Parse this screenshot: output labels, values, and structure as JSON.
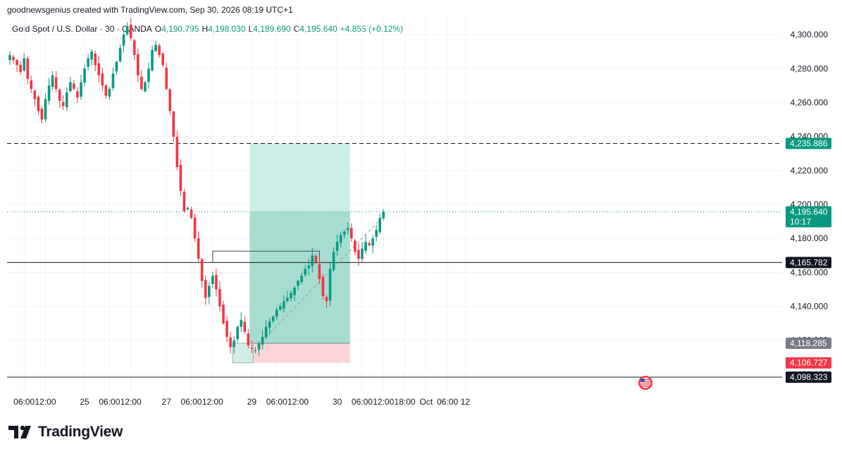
{
  "credit": "goodnewsgenius created with TradingView.com, Sep 30, 2026 08:19 UTC+1",
  "legend": {
    "symbol": "Gold Spot / U.S. Dollar · 30 · OANDA",
    "o_label": "O",
    "o_value": "4,190.795",
    "h_label": "H",
    "h_value": "4,198.030",
    "l_label": "L",
    "l_value": "4,189.690",
    "c_label": "C",
    "c_value": "4,195.640",
    "change": "+4.855 (+0.12%)"
  },
  "colors": {
    "up": "#089981",
    "down": "#f23645",
    "target_zone": "#cdeee6",
    "profit_zone": "#a6ddd0",
    "stop_zone": "#fbd5d8",
    "price_tag": "#089981",
    "level_tag": "#131722",
    "entry_tag": "#787b86",
    "stop_tag": "#f23645"
  },
  "chart_data": {
    "type": "candlestick",
    "symbol": "Gold Spot / U.S. Dollar",
    "interval": "30",
    "ylim": [
      4090,
      4310
    ],
    "y_ticks": [
      "4,300.000",
      "4,280.000",
      "4,260.000",
      "4,240.000",
      "4,220.000",
      "4,200.000",
      "4,180.000",
      "4,160.000",
      "4,140.000",
      "4,120.000",
      "4,100.000"
    ],
    "y_tick_values": [
      4300,
      4280,
      4260,
      4240,
      4220,
      4200,
      4180,
      4160,
      4140,
      4120,
      4100
    ],
    "x_ticks": [
      "06:00",
      "12:00",
      "25",
      "06:00",
      "12:00",
      "27",
      "06:00",
      "12:00",
      "29",
      "06:00",
      "12:00",
      "30",
      "06:00",
      "12:00",
      "18:00",
      "Oct",
      "06:00",
      "12"
    ],
    "x_tick_bars": [
      4,
      10,
      21,
      28,
      34,
      44,
      51,
      57,
      68,
      75,
      81,
      92,
      99,
      105,
      111,
      117,
      123,
      128
    ],
    "close_path": [
      4288,
      4285,
      4282,
      4278,
      4286,
      4274,
      4268,
      4262,
      4255,
      4250,
      4262,
      4270,
      4276,
      4268,
      4261,
      4258,
      4266,
      4272,
      4268,
      4263,
      4272,
      4280,
      4286,
      4290,
      4282,
      4276,
      4270,
      4264,
      4268,
      4277,
      4284,
      4292,
      4300,
      4305,
      4298,
      4288,
      4276,
      4268,
      4272,
      4280,
      4291,
      4294,
      4288,
      4282,
      4268,
      4255,
      4240,
      4222,
      4208,
      4196,
      4198,
      4192,
      4180,
      4168,
      4155,
      4145,
      4152,
      4158,
      4150,
      4140,
      4130,
      4122,
      4116,
      4120,
      4128,
      4132,
      4125,
      4117,
      4115,
      4114,
      4118,
      4122,
      4128,
      4131,
      4134,
      4138,
      4140,
      4143,
      4145,
      4148,
      4151,
      4155,
      4158,
      4162,
      4164,
      4170,
      4166,
      4156,
      4146,
      4143,
      4162,
      4172,
      4178,
      4182,
      4184,
      4186,
      4180,
      4172,
      4168,
      4174,
      4178,
      4176,
      4180,
      4185,
      4192,
      4195.64
    ],
    "last_price": "4,195.640",
    "countdown": "10:17",
    "levels": [
      {
        "label": "4,235.886",
        "value": 4235.886,
        "kind": "target"
      },
      {
        "label": "4,195.640",
        "value": 4195.64,
        "kind": "last"
      },
      {
        "label": "4,165.782",
        "value": 4165.782,
        "kind": "level"
      },
      {
        "label": "4,118.285",
        "value": 4118.285,
        "kind": "entry"
      },
      {
        "label": "4,106.727",
        "value": 4106.727,
        "kind": "stop"
      },
      {
        "label": "4,098.323",
        "value": 4098.323,
        "kind": "level"
      }
    ],
    "position": {
      "side": "long",
      "entry": 4118.285,
      "target": 4235.886,
      "stop": 4106.727,
      "start_bar": 68,
      "end_bar": 95
    },
    "event_icon": "us-flag-icon"
  },
  "footer": {
    "brand": "TradingView"
  }
}
